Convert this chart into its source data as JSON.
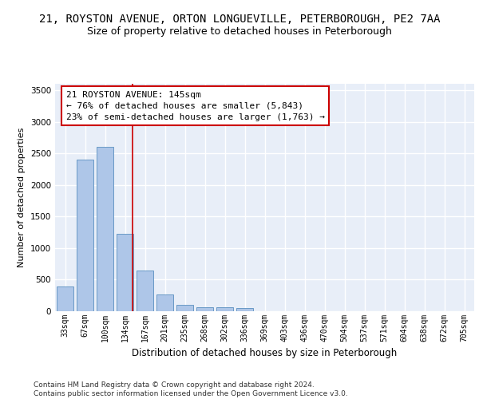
{
  "title1": "21, ROYSTON AVENUE, ORTON LONGUEVILLE, PETERBOROUGH, PE2 7AA",
  "title2": "Size of property relative to detached houses in Peterborough",
  "xlabel": "Distribution of detached houses by size in Peterborough",
  "ylabel": "Number of detached properties",
  "categories": [
    "33sqm",
    "67sqm",
    "100sqm",
    "134sqm",
    "167sqm",
    "201sqm",
    "235sqm",
    "268sqm",
    "302sqm",
    "336sqm",
    "369sqm",
    "403sqm",
    "436sqm",
    "470sqm",
    "504sqm",
    "537sqm",
    "571sqm",
    "604sqm",
    "638sqm",
    "672sqm",
    "705sqm"
  ],
  "values": [
    390,
    2400,
    2600,
    1230,
    640,
    260,
    100,
    60,
    60,
    50,
    0,
    0,
    0,
    0,
    0,
    0,
    0,
    0,
    0,
    0,
    0
  ],
  "bar_color": "#aec6e8",
  "bar_edge_color": "#5a8fc0",
  "ylim": [
    0,
    3600
  ],
  "yticks": [
    0,
    500,
    1000,
    1500,
    2000,
    2500,
    3000,
    3500
  ],
  "property_line_x": 3.36,
  "annotation_box_text": "21 ROYSTON AVENUE: 145sqm\n← 76% of detached houses are smaller (5,843)\n23% of semi-detached houses are larger (1,763) →",
  "annotation_box_color": "#ffffff",
  "annotation_box_edge_color": "#cc0000",
  "red_line_color": "#cc0000",
  "footer_text": "Contains HM Land Registry data © Crown copyright and database right 2024.\nContains public sector information licensed under the Open Government Licence v3.0.",
  "background_color": "#e8eef8",
  "fig_background_color": "#ffffff",
  "grid_color": "#ffffff",
  "title1_fontsize": 10,
  "title2_fontsize": 9,
  "xlabel_fontsize": 8.5,
  "ylabel_fontsize": 8,
  "tick_fontsize": 7,
  "annotation_fontsize": 8,
  "footer_fontsize": 6.5
}
